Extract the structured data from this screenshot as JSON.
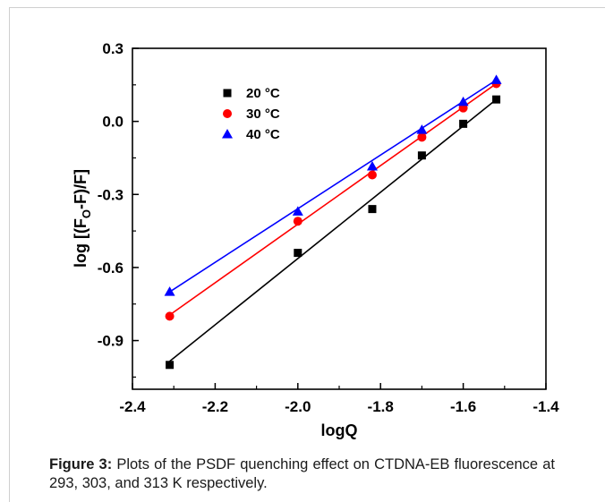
{
  "chart_data": {
    "type": "scatter",
    "xlabel": "logQ",
    "ylabel": {
      "main": "log [(F",
      "sub": "O",
      "tail": "-F)/F]"
    },
    "xlim": [
      -2.4,
      -1.4
    ],
    "ylim": [
      -1.1,
      0.3
    ],
    "x_ticks": [
      -2.4,
      -2.2,
      -2.0,
      -1.8,
      -1.6,
      -1.4
    ],
    "y_ticks": [
      -0.9,
      -0.6,
      -0.3,
      0.0,
      0.3
    ],
    "x_tick_labels": [
      "-2.4",
      "-2.2",
      "-2.0",
      "-1.8",
      "-1.6",
      "-1.4"
    ],
    "y_tick_labels": [
      "-0.9",
      "-0.6",
      "-0.3",
      "0.0",
      "0.3"
    ],
    "grid": false,
    "legend_placement": "top-left",
    "series": [
      {
        "name": "20 °C",
        "marker": "square",
        "color": "#000000",
        "x": [
          -2.31,
          -2.0,
          -1.82,
          -1.7,
          -1.6,
          -1.52
        ],
        "y": [
          -1.0,
          -0.54,
          -0.36,
          -0.14,
          -0.01,
          0.09
        ],
        "fit": [
          [
            -2.31,
            -0.985
          ],
          [
            -1.52,
            0.09
          ]
        ]
      },
      {
        "name": "30 °C",
        "marker": "circle",
        "color": "#ff0000",
        "x": [
          -2.31,
          -2.0,
          -1.82,
          -1.7,
          -1.6,
          -1.52
        ],
        "y": [
          -0.8,
          -0.41,
          -0.22,
          -0.065,
          0.055,
          0.155
        ],
        "fit": [
          [
            -2.31,
            -0.795
          ],
          [
            -1.52,
            0.155
          ]
        ]
      },
      {
        "name": "40 °C",
        "marker": "triangle",
        "color": "#0000ff",
        "x": [
          -2.31,
          -2.0,
          -1.82,
          -1.7,
          -1.6,
          -1.52
        ],
        "y": [
          -0.7,
          -0.37,
          -0.185,
          -0.035,
          0.08,
          0.17
        ],
        "fit": [
          [
            -2.31,
            -0.7
          ],
          [
            -1.52,
            0.17
          ]
        ]
      }
    ]
  },
  "caption": {
    "label": "Figure 3:",
    "text": " Plots of the PSDF quenching effect on CTDNA-EB fluorescence at 293, 303, and 313 K respectively."
  }
}
